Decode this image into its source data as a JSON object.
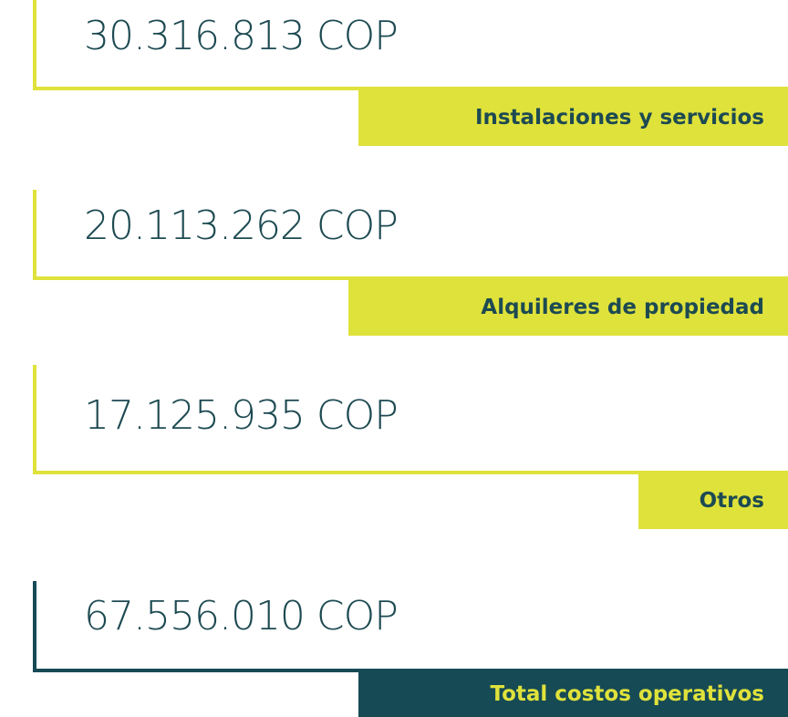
{
  "items": [
    {
      "amount": "30.316.813 COP",
      "label": "Instalaciones y servicios"
    },
    {
      "amount": "20.113.262 COP",
      "label": "Alquileres de propiedad"
    },
    {
      "amount": "17.125.935 COP",
      "label": "Otros"
    },
    {
      "amount": "67.556.010 COP",
      "label": "Total costos operativos"
    }
  ]
}
